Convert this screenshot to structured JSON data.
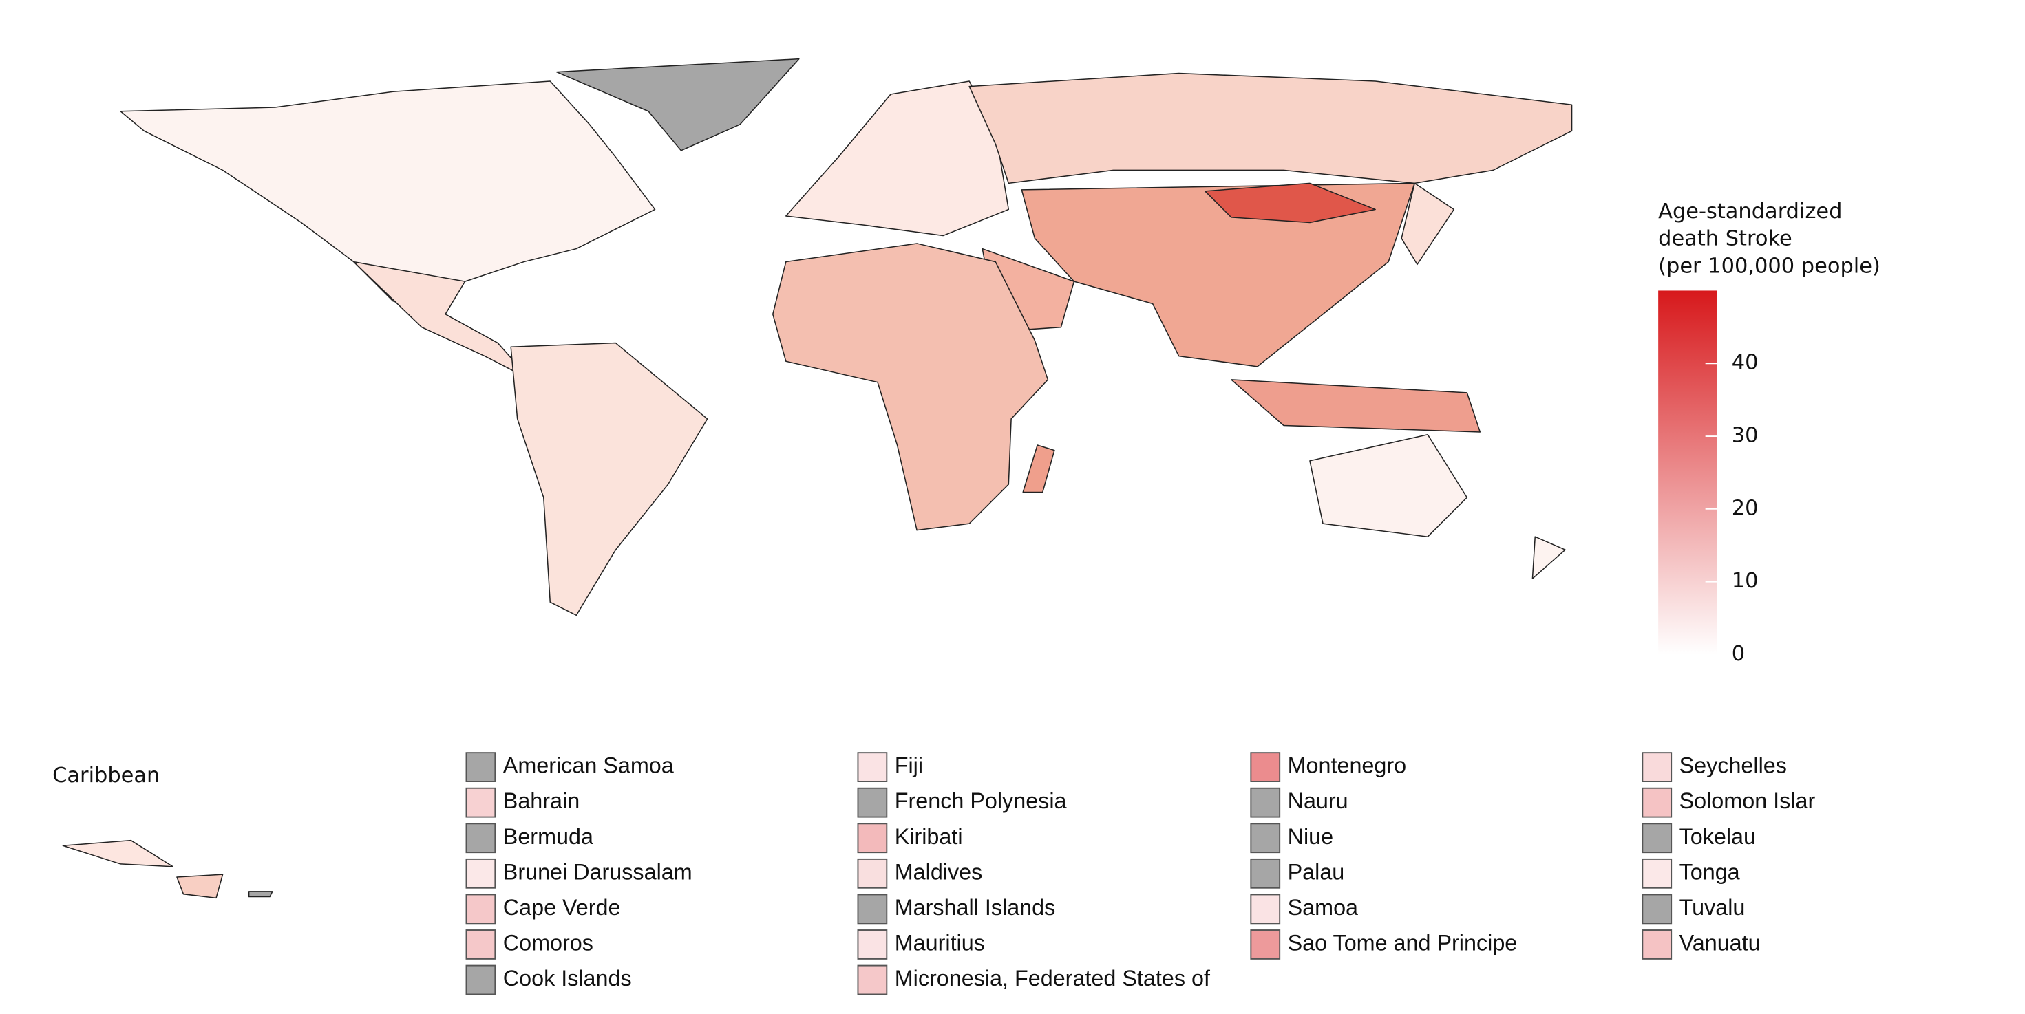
{
  "legend": {
    "title": [
      "Age-standardized",
      "death Stroke",
      "(per 100,000 people)"
    ],
    "clim": [
      0,
      50
    ],
    "ticks": [
      0,
      10,
      20,
      30,
      40
    ],
    "low_color": "#ffffff",
    "high_color": "#d7191c",
    "missing_color": "#a6a6a6"
  },
  "inset": {
    "title": "Caribbean"
  },
  "small_states": [
    {
      "name": "American Samoa",
      "value": null
    },
    {
      "name": "Bahrain",
      "value": 10
    },
    {
      "name": "Bermuda",
      "value": null
    },
    {
      "name": "Brunei Darussalam",
      "value": 5
    },
    {
      "name": "Cape Verde",
      "value": 12
    },
    {
      "name": "Comoros",
      "value": 12
    },
    {
      "name": "Cook Islands",
      "value": null
    },
    {
      "name": "Fiji",
      "value": 6
    },
    {
      "name": "French Polynesia",
      "value": null
    },
    {
      "name": "Kiribati",
      "value": 15
    },
    {
      "name": "Maldives",
      "value": 7
    },
    {
      "name": "Marshall Islands",
      "value": null
    },
    {
      "name": "Mauritius",
      "value": 6
    },
    {
      "name": "Micronesia, Federated States of",
      "value": 12
    },
    {
      "name": "Montenegro",
      "value": 25
    },
    {
      "name": "Nauru",
      "value": null
    },
    {
      "name": "Niue",
      "value": null
    },
    {
      "name": "Palau",
      "value": null
    },
    {
      "name": "Samoa",
      "value": 6
    },
    {
      "name": "Sao Tome and Principe",
      "value": 22
    },
    {
      "name": "Seychelles",
      "value": 8
    },
    {
      "name": "Solomon Islar",
      "value": 13
    },
    {
      "name": "Tokelau",
      "value": null
    },
    {
      "name": "Tonga",
      "value": 5
    },
    {
      "name": "Tuvalu",
      "value": null
    },
    {
      "name": "Vanuatu",
      "value": 13
    }
  ]
}
